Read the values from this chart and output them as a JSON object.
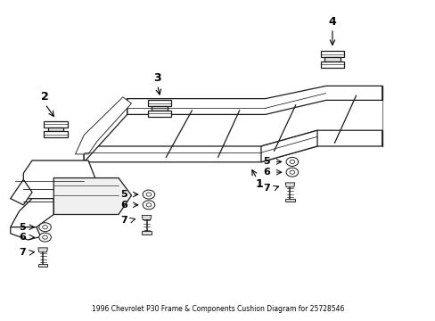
{
  "title": "1996 Chevrolet P30 Frame & Components Cushion Diagram for 25728546",
  "background_color": "#ffffff",
  "fig_width": 4.89,
  "fig_height": 3.6,
  "dpi": 100,
  "frame_color": "#1a1a1a",
  "line_width": 0.9
}
